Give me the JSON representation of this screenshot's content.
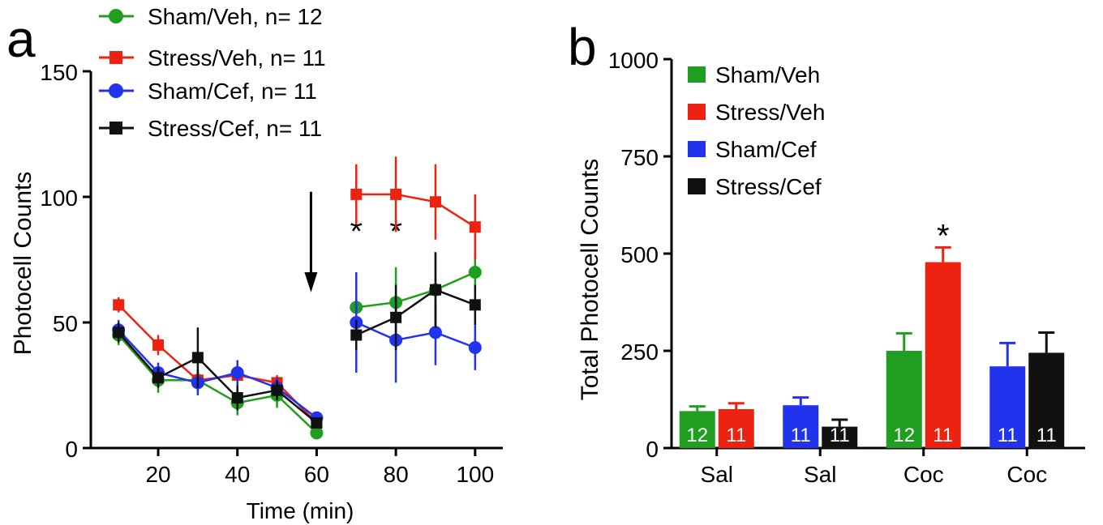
{
  "panels": {
    "a": "a",
    "b": "b"
  },
  "chart_data": [
    {
      "type": "line",
      "panel": "a",
      "xlabel": "Time (min)",
      "ylabel": "Photocell Counts",
      "xlim": [
        3,
        107
      ],
      "ylim": [
        0,
        150
      ],
      "xticks": [
        20,
        40,
        60,
        80,
        100
      ],
      "yticks": [
        0,
        50,
        100,
        150
      ],
      "grid": false,
      "legend_position": "top-left",
      "arrow_at_x": 60,
      "annotations": [
        {
          "text": "*",
          "x": 70,
          "y": 82
        },
        {
          "text": "*",
          "x": 80,
          "y": 82
        }
      ],
      "series": [
        {
          "name": "Sham/Veh, n= 12",
          "color": "#1f9e1f",
          "marker": "circle",
          "segments": [
            {
              "x": [
                10,
                20,
                30,
                40,
                50,
                60
              ],
              "y": [
                45,
                27,
                27,
                18,
                21,
                6
              ],
              "err": [
                4,
                5,
                4,
                5,
                5,
                2
              ]
            },
            {
              "x": [
                70,
                80,
                90,
                100
              ],
              "y": [
                56,
                58,
                63,
                70
              ],
              "err": [
                14,
                14,
                15,
                7
              ]
            }
          ]
        },
        {
          "name": "Stress/Veh, n= 11",
          "color": "#ee2211",
          "marker": "square",
          "segments": [
            {
              "x": [
                10,
                20,
                30,
                40,
                50,
                60
              ],
              "y": [
                57,
                41,
                27,
                29,
                26,
                10
              ],
              "err": [
                3,
                4,
                4,
                4,
                3,
                2
              ]
            },
            {
              "x": [
                70,
                80,
                90,
                100
              ],
              "y": [
                101,
                101,
                98,
                88
              ],
              "err": [
                12,
                15,
                15,
                13
              ]
            }
          ]
        },
        {
          "name": "Sham/Cef, n= 11",
          "color": "#2233ee",
          "marker": "circle",
          "segments": [
            {
              "x": [
                10,
                20,
                30,
                40,
                50,
                60
              ],
              "y": [
                47,
                30,
                26,
                30,
                24,
                12
              ],
              "err": [
                4,
                4,
                5,
                5,
                4,
                2
              ]
            },
            {
              "x": [
                70,
                80,
                90,
                100
              ],
              "y": [
                50,
                43,
                46,
                40
              ],
              "err": [
                20,
                17,
                13,
                9
              ]
            }
          ]
        },
        {
          "name": "Stress/Cef, n=  11",
          "color": "#111111",
          "marker": "square",
          "segments": [
            {
              "x": [
                10,
                20,
                30,
                40,
                50,
                60
              ],
              "y": [
                46,
                28,
                36,
                20,
                23,
                10
              ],
              "err": [
                4,
                4,
                12,
                5,
                4,
                2
              ]
            },
            {
              "x": [
                70,
                80,
                90,
                100
              ],
              "y": [
                45,
                52,
                63,
                57
              ],
              "err": [
                6,
                13,
                15,
                8
              ]
            }
          ]
        }
      ]
    },
    {
      "type": "bar",
      "panel": "b",
      "ylabel": "Total Photocell Counts",
      "ylim": [
        0,
        1000
      ],
      "yticks": [
        0,
        250,
        500,
        750,
        1000
      ],
      "categories": [
        "Sal",
        "Sal",
        "Coc",
        "Coc"
      ],
      "legend_position": "top-left",
      "legend": [
        {
          "name": "Sham/Veh",
          "color": "#1f9e1f"
        },
        {
          "name": "Stress/Veh",
          "color": "#ee2211"
        },
        {
          "name": "Sham/Cef",
          "color": "#2233ee"
        },
        {
          "name": "Stress/Cef",
          "color": "#111111"
        }
      ],
      "bars": [
        {
          "group": 0,
          "color": "#1f9e1f",
          "value": 95,
          "err": 12,
          "n": "12"
        },
        {
          "group": 0,
          "color": "#ee2211",
          "value": 100,
          "err": 15,
          "n": "11"
        },
        {
          "group": 1,
          "color": "#2233ee",
          "value": 110,
          "err": 20,
          "n": "11"
        },
        {
          "group": 1,
          "color": "#111111",
          "value": 55,
          "err": 18,
          "n": "11"
        },
        {
          "group": 2,
          "color": "#1f9e1f",
          "value": 250,
          "err": 45,
          "n": "12"
        },
        {
          "group": 2,
          "color": "#ee2211",
          "value": 478,
          "err": 38,
          "n": "11"
        },
        {
          "group": 3,
          "color": "#2233ee",
          "value": 210,
          "err": 60,
          "n": "11"
        },
        {
          "group": 3,
          "color": "#111111",
          "value": 245,
          "err": 52,
          "n": "11"
        }
      ],
      "annotations": [
        {
          "text": "*",
          "bar": 5,
          "y": 555
        }
      ]
    }
  ]
}
